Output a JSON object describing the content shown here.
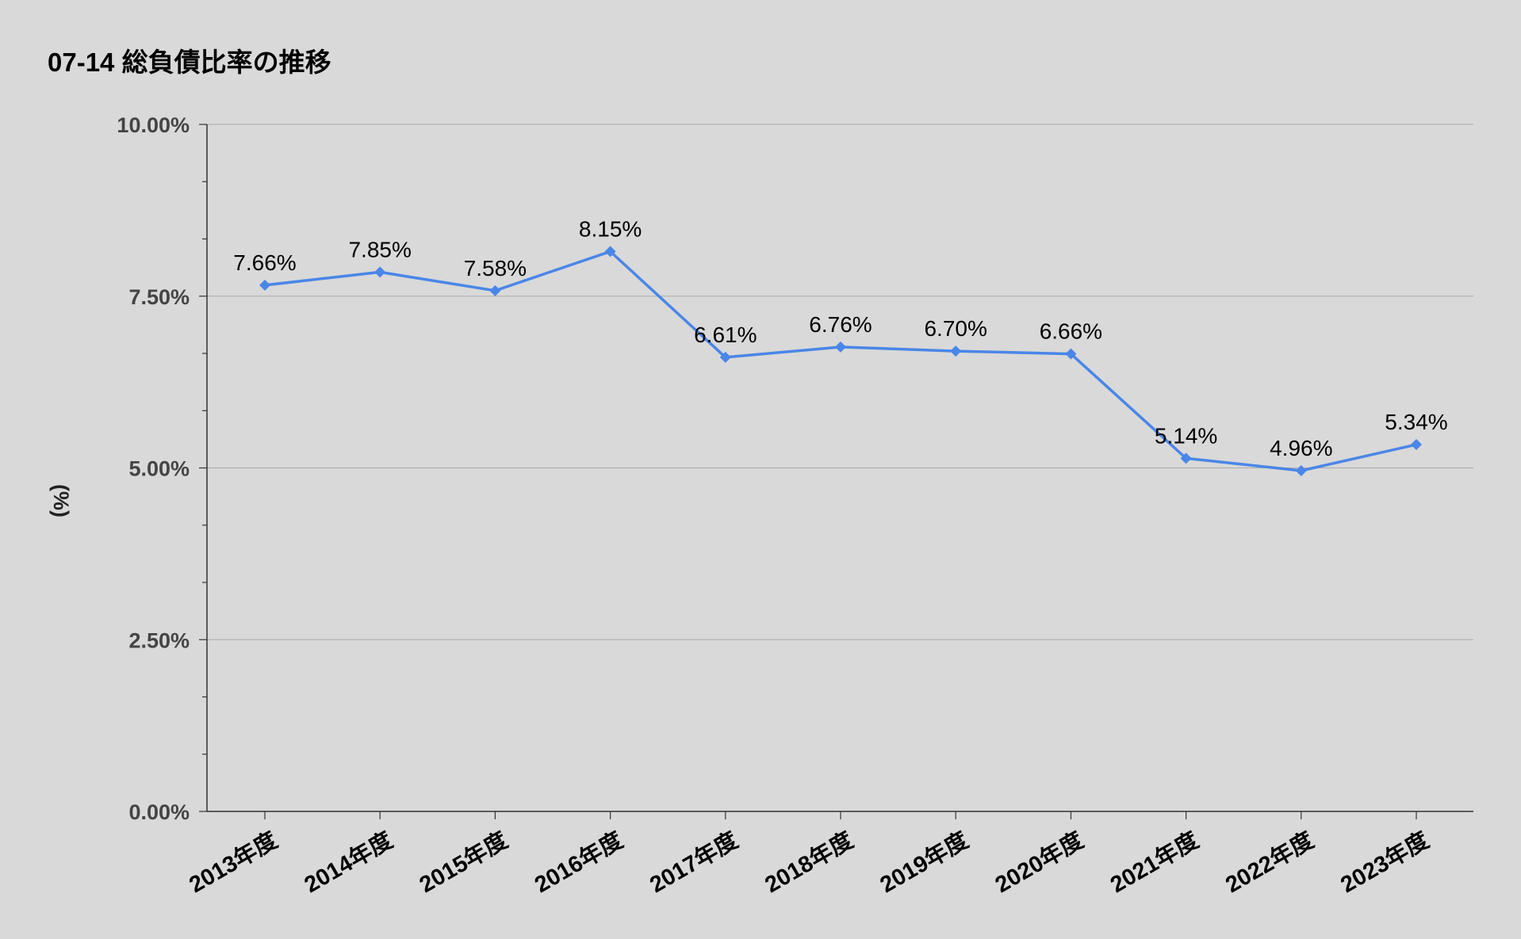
{
  "chart_data": {
    "type": "line",
    "title": "07-14 総負債比率の推移",
    "xlabel": "",
    "ylabel": "(%)",
    "categories": [
      "2013年度",
      "2014年度",
      "2015年度",
      "2016年度",
      "2017年度",
      "2018年度",
      "2019年度",
      "2020年度",
      "2021年度",
      "2022年度",
      "2023年度"
    ],
    "series": [
      {
        "values": [
          7.66,
          7.85,
          7.58,
          8.15,
          6.61,
          6.76,
          6.7,
          6.66,
          5.14,
          4.96,
          5.34
        ],
        "data_labels": [
          "7.66%",
          "7.85%",
          "7.58%",
          "8.15%",
          "6.61%",
          "6.76%",
          "6.70%",
          "6.66%",
          "5.14%",
          "4.96%",
          "5.34%"
        ],
        "color": "#4a86e8",
        "marker": "diamond"
      }
    ],
    "ylim": [
      0,
      10
    ],
    "yticks": [
      0,
      2.5,
      5,
      7.5,
      10
    ],
    "ytick_labels": [
      "0.00%",
      "2.50%",
      "5.00%",
      "7.50%",
      "10.00%"
    ],
    "grid": true,
    "legend": "none",
    "background": "#d9d9d9",
    "grid_color": "#aaaaaa"
  }
}
